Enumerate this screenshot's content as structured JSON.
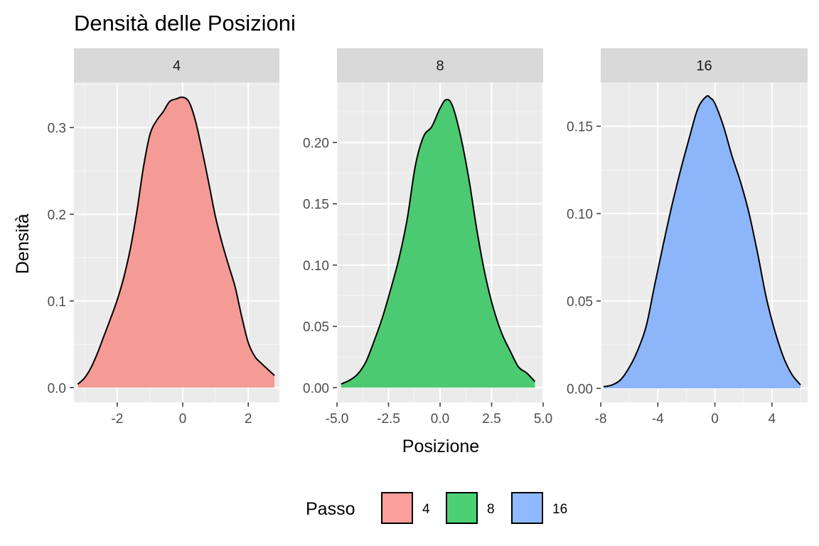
{
  "chart_data": {
    "type": "area",
    "title": "Densità delle Posizioni",
    "xlabel": "Posizione",
    "ylabel": "Densità",
    "facet_variable": "Passo",
    "legend": {
      "title": "Passo",
      "placement": "bottom",
      "entries": [
        "4",
        "8",
        "16"
      ]
    },
    "grid": true,
    "facets": [
      {
        "label": "4",
        "color": "#F8766D",
        "xlim": [
          -3.32,
          2.95
        ],
        "ylim": [
          -0.017,
          0.352
        ],
        "xticks": [
          -2,
          0,
          2
        ],
        "xtick_labels": [
          "-2",
          "0",
          "2"
        ],
        "yticks": [
          0.0,
          0.1,
          0.2,
          0.3
        ],
        "ytick_labels": [
          "0.0",
          "0.1",
          "0.2",
          "0.3"
        ],
        "x": [
          -3.2,
          -3.0,
          -2.8,
          -2.6,
          -2.4,
          -2.2,
          -2.0,
          -1.8,
          -1.6,
          -1.4,
          -1.2,
          -1.0,
          -0.8,
          -0.6,
          -0.4,
          -0.2,
          0.0,
          0.2,
          0.4,
          0.6,
          0.8,
          1.0,
          1.2,
          1.4,
          1.6,
          1.8,
          2.0,
          2.2,
          2.4,
          2.6,
          2.8
        ],
        "y": [
          0.004,
          0.011,
          0.023,
          0.04,
          0.06,
          0.08,
          0.101,
          0.127,
          0.16,
          0.203,
          0.254,
          0.292,
          0.308,
          0.318,
          0.33,
          0.333,
          0.335,
          0.329,
          0.306,
          0.272,
          0.235,
          0.197,
          0.167,
          0.141,
          0.116,
          0.082,
          0.052,
          0.036,
          0.028,
          0.021,
          0.014
        ]
      },
      {
        "label": "8",
        "color": "#00BA38",
        "xlim": [
          -5.0,
          5.0
        ],
        "ylim": [
          -0.012,
          0.249
        ],
        "xticks": [
          -5.0,
          -2.5,
          0.0,
          2.5,
          5.0
        ],
        "xtick_labels": [
          "-5.0",
          "-2.5",
          "0.0",
          "2.5",
          "5.0"
        ],
        "yticks": [
          0.0,
          0.05,
          0.1,
          0.15,
          0.2
        ],
        "ytick_labels": [
          "0.00",
          "0.05",
          "0.10",
          "0.15",
          "0.20"
        ],
        "x": [
          -4.8,
          -4.4,
          -4.0,
          -3.6,
          -3.2,
          -2.8,
          -2.4,
          -2.0,
          -1.6,
          -1.2,
          -0.8,
          -0.4,
          0.0,
          0.3,
          0.6,
          1.0,
          1.4,
          1.8,
          2.2,
          2.6,
          3.0,
          3.4,
          3.8,
          4.2,
          4.6
        ],
        "y": [
          0.003,
          0.006,
          0.011,
          0.021,
          0.038,
          0.057,
          0.08,
          0.105,
          0.137,
          0.181,
          0.205,
          0.213,
          0.228,
          0.235,
          0.23,
          0.205,
          0.17,
          0.127,
          0.091,
          0.064,
          0.044,
          0.03,
          0.017,
          0.012,
          0.005
        ]
      },
      {
        "label": "16",
        "color": "#619CFF",
        "xlim": [
          -8.0,
          6.5
        ],
        "ylim": [
          -0.008,
          0.175
        ],
        "xticks": [
          -8,
          -4,
          0,
          4
        ],
        "xtick_labels": [
          "-8",
          "-4",
          "0",
          "4"
        ],
        "yticks": [
          0.0,
          0.05,
          0.1,
          0.15
        ],
        "ytick_labels": [
          "0.00",
          "0.05",
          "0.10",
          "0.15"
        ],
        "x": [
          -7.8,
          -7.2,
          -6.6,
          -6.0,
          -5.4,
          -4.8,
          -4.2,
          -3.6,
          -3.0,
          -2.4,
          -1.8,
          -1.2,
          -0.6,
          -0.3,
          0.0,
          0.6,
          1.2,
          1.8,
          2.4,
          3.0,
          3.6,
          4.2,
          4.8,
          5.4,
          6.0
        ],
        "y": [
          0.001,
          0.002,
          0.005,
          0.012,
          0.022,
          0.036,
          0.06,
          0.083,
          0.105,
          0.125,
          0.143,
          0.16,
          0.167,
          0.166,
          0.163,
          0.15,
          0.133,
          0.118,
          0.1,
          0.077,
          0.052,
          0.033,
          0.018,
          0.008,
          0.002
        ]
      }
    ]
  }
}
